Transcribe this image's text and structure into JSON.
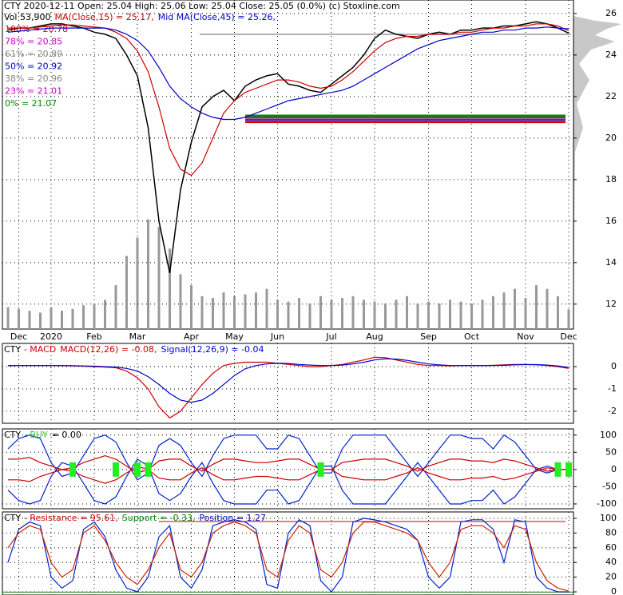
{
  "chart_data": [
    {
      "type": "line",
      "header": [
        [
          {
            "text": "CTY  2020-12-11 Open: 25.04  High: 25.06  Low: 25.04  Close: 25.05 (0.0%)  (c) Stoxline.com",
            "color": "#000000"
          }
        ],
        [
          {
            "text": "Vol 53,900",
            "color": "#000000"
          },
          {
            "text": "MA(Close,15) = 25.17,",
            "color": "#cc0000"
          },
          {
            "text": "Mid MA(Close,45) = 25.26,",
            "color": "#0000cc"
          }
        ]
      ],
      "fib_levels": [
        {
          "label": "100% = 20.78",
          "value": 20.78,
          "color": "#dd0000"
        },
        {
          "label": "78% = 20.85",
          "value": 20.85,
          "color": "#cc00cc"
        },
        {
          "label": "61% = 20.89",
          "value": 20.89,
          "color": "#888888"
        },
        {
          "label": "50% = 20.92",
          "value": 20.92,
          "color": "#0000cc"
        },
        {
          "label": "38% = 20.96",
          "value": 20.96,
          "color": "#888888"
        },
        {
          "label": "23% = 21.01",
          "value": 21.01,
          "color": "#cc00cc"
        },
        {
          "label": "0% = 21.07",
          "value": 21.07,
          "color": "#008800"
        }
      ],
      "categories": [
        null,
        "Dec",
        null,
        null,
        "2020",
        null,
        null,
        null,
        "Feb",
        null,
        null,
        null,
        "Mar",
        null,
        null,
        null,
        null,
        "Apr",
        null,
        null,
        null,
        "May",
        null,
        null,
        null,
        "Jun",
        null,
        null,
        null,
        null,
        "Jul",
        null,
        null,
        null,
        "Aug",
        null,
        null,
        null,
        null,
        "Sep",
        null,
        null,
        null,
        "Oct",
        null,
        null,
        null,
        null,
        "Nov",
        null,
        null,
        null,
        "Dec"
      ],
      "ylim": [
        10.8,
        26.65
      ],
      "yticks": [
        12,
        14,
        16,
        18,
        20,
        22,
        24,
        26
      ],
      "grid": true,
      "series": [
        {
          "name": "Close",
          "color": "#000000",
          "values": [
            25.2,
            25.3,
            25.3,
            25.4,
            25.5,
            25.5,
            25.4,
            25.3,
            25.1,
            25.0,
            24.8,
            24.0,
            23.0,
            20.5,
            16.0,
            13.5,
            17.5,
            19.8,
            21.5,
            22.0,
            22.3,
            21.8,
            22.5,
            22.8,
            23.0,
            23.1,
            22.6,
            22.5,
            22.3,
            22.2,
            22.6,
            23.0,
            23.4,
            24.0,
            24.8,
            25.2,
            25.0,
            24.9,
            24.8,
            25.0,
            25.1,
            25.0,
            25.2,
            25.2,
            25.3,
            25.3,
            25.4,
            25.4,
            25.5,
            25.6,
            25.5,
            25.3,
            25.05
          ]
        },
        {
          "name": "MA(Close,15)",
          "color": "#cc0000",
          "values": [
            25.3,
            25.3,
            25.3,
            25.35,
            25.4,
            25.45,
            25.45,
            25.4,
            25.35,
            25.3,
            25.1,
            24.8,
            24.2,
            23.2,
            21.5,
            19.5,
            18.5,
            18.2,
            18.8,
            20.0,
            21.2,
            21.8,
            22.2,
            22.4,
            22.6,
            22.8,
            22.8,
            22.7,
            22.5,
            22.4,
            22.5,
            22.8,
            23.2,
            23.7,
            24.2,
            24.6,
            24.8,
            24.9,
            24.9,
            25.0,
            25.0,
            25.0,
            25.1,
            25.1,
            25.2,
            25.3,
            25.3,
            25.4,
            25.4,
            25.5,
            25.5,
            25.4,
            25.17
          ]
        },
        {
          "name": "Mid MA(Close,45)",
          "color": "#0000cc",
          "values": [
            25.1,
            25.15,
            25.2,
            25.25,
            25.3,
            25.3,
            25.3,
            25.3,
            25.3,
            25.3,
            25.2,
            25.0,
            24.7,
            24.2,
            23.4,
            22.5,
            21.9,
            21.5,
            21.2,
            21.0,
            20.9,
            20.9,
            21.0,
            21.2,
            21.4,
            21.6,
            21.8,
            21.9,
            22.0,
            22.1,
            22.2,
            22.3,
            22.5,
            22.8,
            23.1,
            23.4,
            23.7,
            24.0,
            24.3,
            24.5,
            24.7,
            24.8,
            24.9,
            25.0,
            25.1,
            25.1,
            25.2,
            25.2,
            25.3,
            25.3,
            25.35,
            25.3,
            25.26
          ]
        }
      ],
      "volume": {
        "color": "#999999",
        "ylim": [
          0,
          900000
        ],
        "values": [
          60000,
          55000,
          50000,
          45000,
          60000,
          50000,
          55000,
          65000,
          70000,
          80000,
          120000,
          200000,
          250000,
          300000,
          280000,
          220000,
          150000,
          120000,
          90000,
          85000,
          100000,
          90000,
          95000,
          100000,
          110000,
          80000,
          75000,
          85000,
          70000,
          90000,
          80000,
          85000,
          90000,
          80000,
          75000,
          70000,
          80000,
          90000,
          70000,
          75000,
          70000,
          80000,
          75000,
          70000,
          80000,
          90000,
          100000,
          110000,
          85000,
          120000,
          110000,
          90000,
          53900
        ]
      }
    },
    {
      "type": "line",
      "header": [
        [
          {
            "text": "CTY",
            "color": "#000000"
          },
          {
            "text": "- MACD",
            "color": "#cc0000"
          },
          {
            "text": "MACD(12,26) = -0.08,",
            "color": "#cc0000"
          },
          {
            "text": "Signal(12,26,9) = -0.04",
            "color": "#0000cc"
          }
        ]
      ],
      "ylim": [
        -2.54,
        1.04
      ],
      "yticks": [
        0,
        -1,
        -2
      ],
      "grid": true,
      "series": [
        {
          "name": "MACD(12,26)",
          "color": "#cc0000",
          "values": [
            0.05,
            0.05,
            0.05,
            0.05,
            0.05,
            0.04,
            0.03,
            0.02,
            0,
            -0.02,
            -0.05,
            -0.2,
            -0.5,
            -1.0,
            -1.8,
            -2.3,
            -2.0,
            -1.4,
            -0.8,
            -0.3,
            0.05,
            0.15,
            0.2,
            0.2,
            0.2,
            0.15,
            0.1,
            0.05,
            0,
            0,
            0.05,
            0.1,
            0.2,
            0.3,
            0.42,
            0.4,
            0.3,
            0.2,
            0.1,
            0.05,
            0.05,
            0.03,
            0.05,
            0.05,
            0.05,
            0.06,
            0.08,
            0.1,
            0.1,
            0.08,
            0.05,
            0,
            -0.08
          ]
        },
        {
          "name": "Signal(12,26,9)",
          "color": "#0000cc",
          "values": [
            0.04,
            0.05,
            0.05,
            0.05,
            0.05,
            0.05,
            0.04,
            0.03,
            0.02,
            0,
            -0.02,
            -0.08,
            -0.2,
            -0.45,
            -0.8,
            -1.2,
            -1.5,
            -1.6,
            -1.5,
            -1.2,
            -0.8,
            -0.4,
            -0.1,
            0.05,
            0.12,
            0.15,
            0.14,
            0.1,
            0.07,
            0.05,
            0.05,
            0.07,
            0.12,
            0.2,
            0.3,
            0.35,
            0.34,
            0.28,
            0.2,
            0.12,
            0.08,
            0.05,
            0.05,
            0.05,
            0.05,
            0.05,
            0.06,
            0.08,
            0.09,
            0.09,
            0.07,
            0.03,
            -0.04
          ]
        }
      ]
    },
    {
      "type": "line",
      "header": [
        [
          {
            "text": "CTY",
            "color": "#000000"
          },
          {
            "text": "- BUY",
            "color": "#22cc22"
          },
          {
            "text": "= 0.00",
            "color": "#000000"
          }
        ]
      ],
      "ylim": [
        -114,
        118
      ],
      "yticks": [
        100,
        50,
        0,
        -50,
        -100
      ],
      "grid": true,
      "series": [
        {
          "color": "#0022cc",
          "values": [
            60,
            90,
            100,
            90,
            20,
            -20,
            -10,
            40,
            90,
            100,
            80,
            20,
            -30,
            -10,
            70,
            90,
            70,
            20,
            -20,
            40,
            90,
            100,
            100,
            100,
            60,
            60,
            100,
            90,
            40,
            -10,
            -10,
            60,
            100,
            100,
            100,
            100,
            60,
            20,
            -20,
            20,
            60,
            100,
            100,
            90,
            90,
            60,
            100,
            80,
            40,
            0,
            -10,
            0,
            0
          ]
        },
        {
          "color": "#0022cc",
          "values": [
            -60,
            -90,
            -100,
            -90,
            -20,
            20,
            10,
            -40,
            -90,
            -100,
            -80,
            -20,
            30,
            10,
            -70,
            -90,
            -70,
            -20,
            20,
            -40,
            -90,
            -100,
            -100,
            -100,
            -60,
            -60,
            -100,
            -90,
            -40,
            10,
            10,
            -60,
            -100,
            -100,
            -100,
            -100,
            -60,
            -20,
            20,
            -20,
            -60,
            -100,
            -100,
            -90,
            -90,
            -60,
            -100,
            -80,
            -40,
            0,
            10,
            0,
            0
          ]
        },
        {
          "color": "#cc0000",
          "values": [
            30,
            30,
            35,
            20,
            10,
            0,
            5,
            20,
            30,
            40,
            30,
            10,
            -10,
            0,
            25,
            30,
            30,
            10,
            -5,
            15,
            30,
            30,
            25,
            20,
            20,
            25,
            30,
            30,
            15,
            0,
            0,
            20,
            25,
            30,
            30,
            30,
            20,
            10,
            -5,
            10,
            20,
            30,
            30,
            25,
            25,
            20,
            30,
            25,
            15,
            5,
            -5,
            0,
            0
          ]
        },
        {
          "color": "#cc0000",
          "values": [
            -30,
            -30,
            -35,
            -20,
            -10,
            0,
            -5,
            -20,
            -30,
            -40,
            -30,
            -10,
            10,
            0,
            -25,
            -30,
            -30,
            -10,
            5,
            -15,
            -30,
            -30,
            -25,
            -20,
            -20,
            -25,
            -30,
            -30,
            -15,
            0,
            0,
            -20,
            -25,
            -30,
            -30,
            -30,
            -20,
            -10,
            5,
            -10,
            -20,
            -30,
            -30,
            -25,
            -25,
            -20,
            -30,
            -25,
            -15,
            -5,
            5,
            0,
            0
          ]
        }
      ],
      "buy_markers": {
        "color": "#22ee22",
        "values": [
          null,
          null,
          null,
          null,
          null,
          null,
          0,
          null,
          null,
          null,
          0,
          null,
          0,
          0,
          null,
          null,
          null,
          null,
          null,
          null,
          null,
          null,
          null,
          null,
          null,
          null,
          null,
          null,
          null,
          0,
          null,
          null,
          null,
          null,
          null,
          null,
          null,
          null,
          null,
          null,
          null,
          null,
          null,
          null,
          null,
          null,
          null,
          null,
          null,
          null,
          null,
          0,
          0
        ]
      }
    },
    {
      "type": "line",
      "header": [
        [
          {
            "text": "CTY",
            "color": "#000000"
          },
          {
            "text": "- Resistance = 95.61,",
            "color": "#cc0000"
          },
          {
            "text": "Support = -0.33,",
            "color": "#008800"
          },
          {
            "text": "Position = 1.27",
            "color": "#0000cc"
          }
        ]
      ],
      "resistance": 95.61,
      "support": -0.33,
      "ylim": [
        -4.3,
        108.7
      ],
      "yticks": [
        100,
        80,
        60,
        40,
        20,
        0
      ],
      "grid": true,
      "series": [
        {
          "color": "#0022cc",
          "values": [
            40,
            85,
            95,
            90,
            20,
            5,
            15,
            85,
            95,
            75,
            30,
            5,
            0,
            20,
            75,
            90,
            20,
            5,
            30,
            90,
            95,
            98,
            95,
            85,
            10,
            5,
            80,
            98,
            90,
            15,
            0,
            20,
            95,
            100,
            98,
            95,
            90,
            85,
            70,
            20,
            5,
            20,
            95,
            98,
            98,
            85,
            40,
            98,
            95,
            20,
            5,
            0,
            0
          ]
        },
        {
          "name": "Position",
          "color": "#cc2200",
          "values": [
            60,
            80,
            90,
            85,
            40,
            20,
            30,
            80,
            90,
            70,
            40,
            20,
            10,
            30,
            60,
            80,
            30,
            20,
            40,
            80,
            90,
            95,
            90,
            80,
            30,
            20,
            70,
            90,
            80,
            30,
            20,
            40,
            80,
            95,
            95,
            90,
            85,
            80,
            70,
            40,
            20,
            40,
            85,
            90,
            90,
            80,
            60,
            90,
            85,
            40,
            15,
            5,
            1.27
          ]
        }
      ]
    }
  ]
}
